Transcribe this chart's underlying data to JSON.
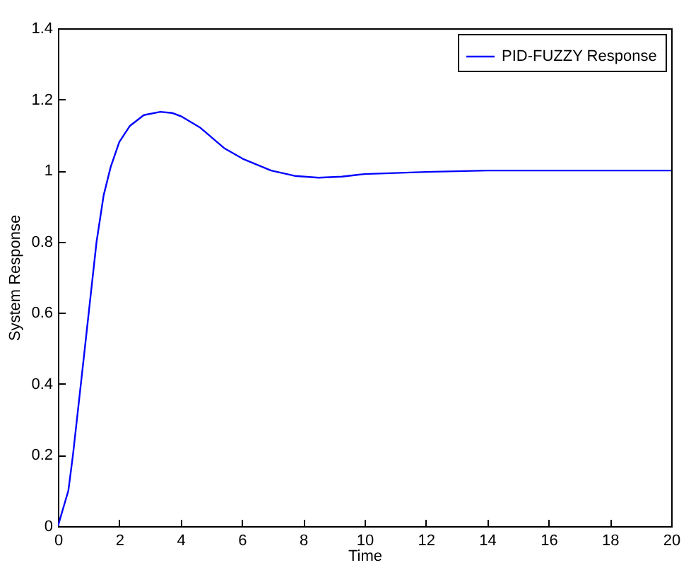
{
  "chart_data": {
    "type": "line",
    "xlabel": "Time",
    "ylabel": "System Response",
    "x": [
      0,
      0.34,
      0.49,
      0.8,
      1.03,
      1.26,
      1.49,
      1.72,
      2,
      2.34,
      2.8,
      3.34,
      3.72,
      4.03,
      4.65,
      5.42,
      6.03,
      6.95,
      7.72,
      8.5,
      9.26,
      10,
      12,
      14,
      16,
      18,
      20
    ],
    "series": [
      {
        "name": "PID-FUZZY Response",
        "color": "#0000ff",
        "values": [
          0,
          0.1,
          0.2,
          0.44,
          0.62,
          0.8,
          0.93,
          1.01,
          1.08,
          1.125,
          1.156,
          1.165,
          1.162,
          1.152,
          1.12,
          1.063,
          1.033,
          1.0,
          0.985,
          0.98,
          0.983,
          0.99,
          0.996,
          1.0,
          1.0,
          1.0,
          1.0
        ]
      }
    ],
    "xlim": [
      0,
      20
    ],
    "xticks": [
      0,
      2,
      4,
      6,
      8,
      10,
      12,
      14,
      16,
      18,
      20
    ],
    "ylim": [
      0,
      1.4
    ],
    "yticks": [
      0,
      0.2,
      0.4,
      0.6,
      0.8,
      1,
      1.2,
      1.4
    ],
    "grid": false,
    "legend": "top right",
    "line_style": "solid",
    "marker": "none"
  }
}
